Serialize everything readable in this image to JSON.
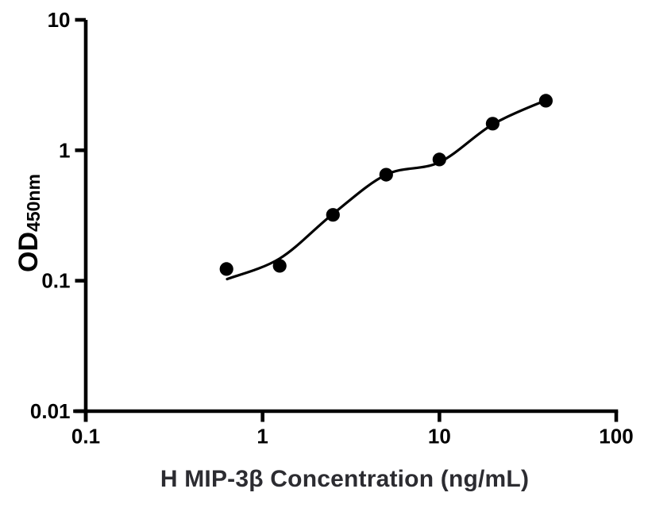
{
  "chart_data": {
    "type": "scatter",
    "title": "",
    "xlabel": "H MIP-3β Concentration (ng/mL)",
    "ylabel_main": "OD",
    "ylabel_sub": "450nm",
    "x_scale": "log",
    "y_scale": "log",
    "xlim": [
      0.1,
      100
    ],
    "ylim": [
      0.01,
      10
    ],
    "grid": false,
    "legend": "none",
    "x_ticks": [
      {
        "value": 0.1,
        "label": "0.1"
      },
      {
        "value": 1,
        "label": "1"
      },
      {
        "value": 10,
        "label": "10"
      },
      {
        "value": 100,
        "label": "100"
      }
    ],
    "y_ticks": [
      {
        "value": 0.01,
        "label": "0.01"
      },
      {
        "value": 0.1,
        "label": "0.1"
      },
      {
        "value": 1,
        "label": "1"
      },
      {
        "value": 10,
        "label": "10"
      }
    ],
    "points": [
      {
        "x": 0.625,
        "y": 0.123
      },
      {
        "x": 1.25,
        "y": 0.13
      },
      {
        "x": 2.5,
        "y": 0.32
      },
      {
        "x": 5,
        "y": 0.65
      },
      {
        "x": 10,
        "y": 0.85
      },
      {
        "x": 20,
        "y": 1.6
      },
      {
        "x": 40,
        "y": 2.4
      }
    ],
    "fit_line": [
      {
        "x": 0.63,
        "y": 0.103
      },
      {
        "x": 1.25,
        "y": 0.148
      },
      {
        "x": 2.5,
        "y": 0.325
      },
      {
        "x": 5,
        "y": 0.65
      },
      {
        "x": 10,
        "y": 0.81
      },
      {
        "x": 20,
        "y": 1.58
      },
      {
        "x": 40,
        "y": 2.42
      }
    ]
  },
  "style": {
    "background": "#ffffff",
    "axis_color": "#000000",
    "point_color": "#000000",
    "fit_line_color": "#000000",
    "tick_label_color": "#000000",
    "xlabel_color": "#2c2c31"
  }
}
